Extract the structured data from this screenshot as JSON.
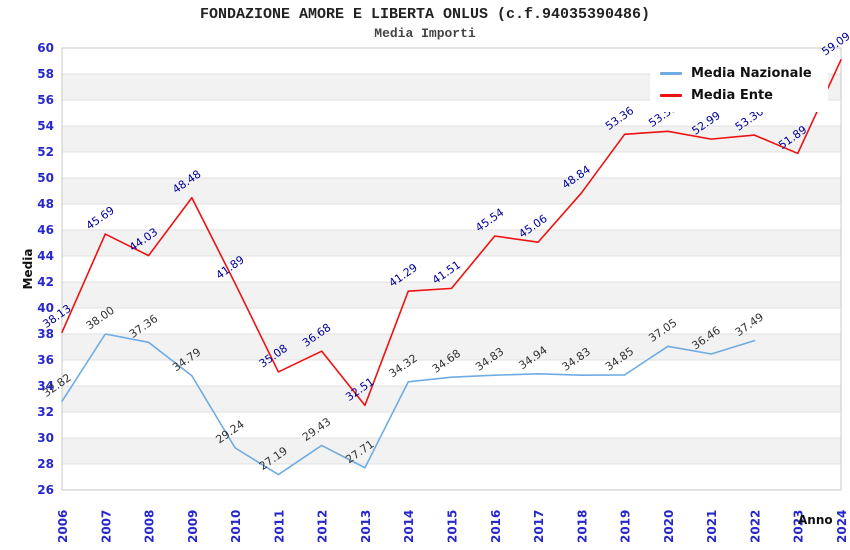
{
  "title": "FONDAZIONE AMORE E LIBERTA ONLUS (c.f.94035390486)",
  "subtitle": "Media Importi",
  "axes": {
    "x_title": "Anno",
    "y_title": "Media"
  },
  "legend": {
    "position": "top-right",
    "items": [
      {
        "label": "Media Nazionale",
        "color": "#6face3"
      },
      {
        "label": "Media Ente",
        "color": "#ee1111"
      }
    ]
  },
  "colors": {
    "tick_label": "#2727cb",
    "grid_line": "#e0e0e0",
    "band_fill": "#f2f2f2",
    "frame": "#c8c8c8",
    "title_text": "#222222",
    "subtitle_text": "#444444"
  },
  "chart_data": {
    "type": "line",
    "title": "FONDAZIONE AMORE E LIBERTA ONLUS (c.f.94035390486)",
    "subtitle": "Media Importi",
    "xlabel": "Anno",
    "ylabel": "Media",
    "x": [
      2006,
      2007,
      2008,
      2009,
      2010,
      2011,
      2012,
      2013,
      2014,
      2015,
      2016,
      2017,
      2018,
      2019,
      2020,
      2021,
      2022,
      2023,
      2024
    ],
    "series": [
      {
        "name": "Media Nazionale",
        "color": "#6face3",
        "label_color": "#333333",
        "values": [
          32.82,
          38.0,
          37.36,
          34.79,
          29.24,
          27.19,
          29.43,
          27.71,
          34.32,
          34.68,
          34.83,
          34.94,
          34.83,
          34.85,
          37.05,
          36.46,
          37.49
        ]
      },
      {
        "name": "Media Ente",
        "color": "#ee1111",
        "label_color": "#000099",
        "values": [
          38.13,
          45.69,
          44.03,
          48.48,
          41.89,
          35.08,
          36.68,
          32.51,
          41.29,
          41.51,
          45.54,
          45.06,
          48.84,
          53.36,
          53.59,
          52.99,
          53.3,
          51.89,
          59.09
        ]
      }
    ],
    "ylim": [
      26,
      60
    ],
    "ytick_step": 2,
    "grid": true,
    "alternating_bands": true,
    "legend_position": "top-right",
    "value_label_decimals": 2
  }
}
